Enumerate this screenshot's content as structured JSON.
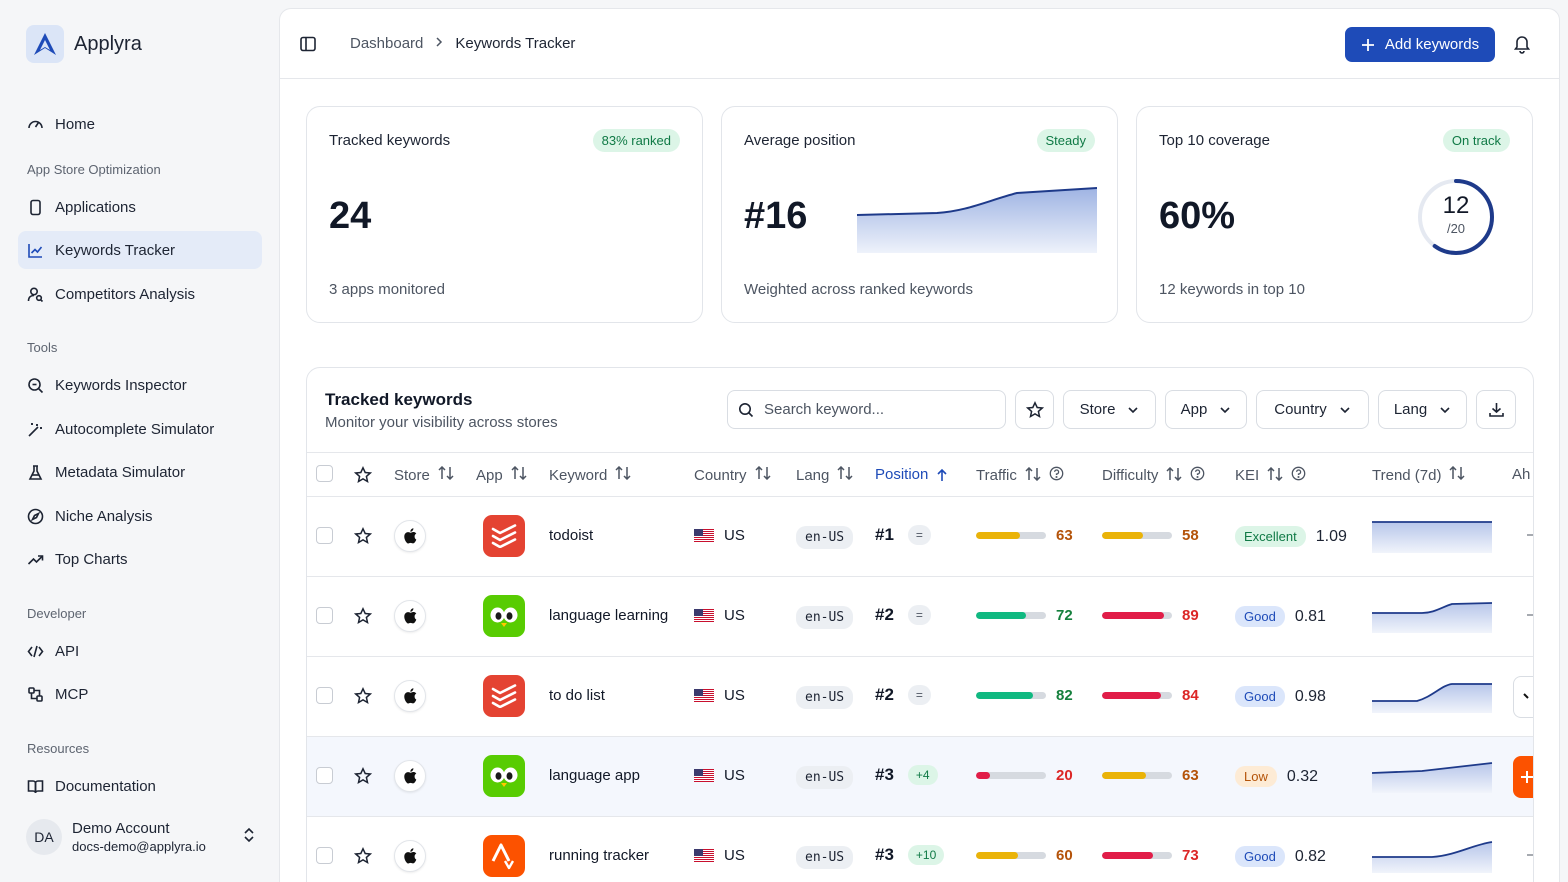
{
  "brand": {
    "name": "Applyra"
  },
  "sidebar": {
    "home": "Home",
    "sections": {
      "aso": "App Store Optimization",
      "tools": "Tools",
      "developer": "Developer",
      "resources": "Resources"
    },
    "aso_items": [
      "Applications",
      "Keywords Tracker",
      "Competitors Analysis"
    ],
    "tool_items": [
      "Keywords Inspector",
      "Autocomplete Simulator",
      "Metadata Simulator",
      "Niche Analysis",
      "Top Charts"
    ],
    "dev_items": [
      "API",
      "MCP"
    ],
    "res_items": [
      "Documentation"
    ],
    "account": {
      "initials": "DA",
      "name": "Demo Account",
      "email": "docs-demo@applyra.io"
    }
  },
  "topbar": {
    "breadcrumb": [
      "Dashboard",
      "Keywords Tracker"
    ],
    "add_label": "Add keywords"
  },
  "cards": [
    {
      "title": "Tracked keywords",
      "badge": "83% ranked",
      "value": "24",
      "sub": "3 apps monitored"
    },
    {
      "title": "Average position",
      "badge": "Steady",
      "value": "#16",
      "sub": "Weighted across ranked keywords"
    },
    {
      "title": "Top 10 coverage",
      "badge": "On track",
      "value": "60%",
      "sub": "12 keywords in top 10",
      "ring_value": "12",
      "ring_total": "/20",
      "ring_fraction": 0.6
    }
  ],
  "table": {
    "title": "Tracked keywords",
    "subtitle": "Monitor your visibility across stores",
    "search_placeholder": "Search keyword...",
    "filters": [
      "Store",
      "App",
      "Country",
      "Lang"
    ],
    "columns": [
      "Store",
      "App",
      "Keyword",
      "Country",
      "Lang",
      "Position",
      "Traffic",
      "Difficulty",
      "KEI",
      "Trend (7d)",
      "Ah"
    ],
    "rows": [
      {
        "keyword": "todoist",
        "country": "US",
        "lang": "en-US",
        "position": "#1",
        "change": "=",
        "traffic": 63,
        "difficulty": 58,
        "kei_label": "Excellent",
        "kei": "1.09",
        "app": "todoist",
        "edge": "–"
      },
      {
        "keyword": "language learning",
        "country": "US",
        "lang": "en-US",
        "position": "#2",
        "change": "=",
        "traffic": 72,
        "difficulty": 89,
        "kei_label": "Good",
        "kei": "0.81",
        "app": "duolingo",
        "edge": "–"
      },
      {
        "keyword": "to do list",
        "country": "US",
        "lang": "en-US",
        "position": "#2",
        "change": "=",
        "traffic": 82,
        "difficulty": 84,
        "kei_label": "Good",
        "kei": "0.98",
        "app": "todoist",
        "edge": ""
      },
      {
        "keyword": "language app",
        "country": "US",
        "lang": "en-US",
        "position": "#3",
        "change": "+4",
        "traffic": 20,
        "difficulty": 63,
        "kei_label": "Low",
        "kei": "0.32",
        "app": "duolingo",
        "edge": ""
      },
      {
        "keyword": "running tracker",
        "country": "US",
        "lang": "en-US",
        "position": "#3",
        "change": "+10",
        "traffic": 60,
        "difficulty": 73,
        "kei_label": "Good",
        "kei": "0.82",
        "app": "strava",
        "edge": "–"
      }
    ]
  },
  "colors": {
    "accent": "#1e4bb8",
    "green": "#16a34a",
    "yellow": "#eab308",
    "red": "#e11d48",
    "teal": "#10b981"
  }
}
